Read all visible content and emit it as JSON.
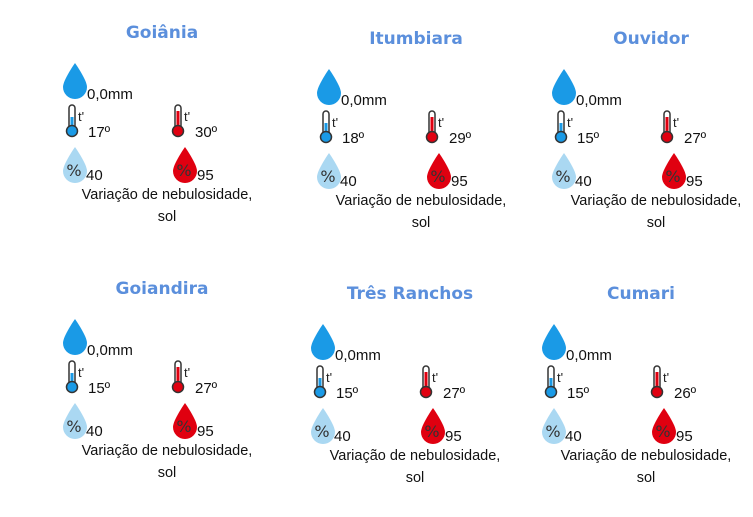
{
  "colors": {
    "title": "#5b8fdc",
    "rain": "#1a9ae6",
    "cold": "#1a9ae6",
    "hot": "#e00010",
    "humidity_low": "#aad8f2",
    "humidity_high": "#e00010"
  },
  "cities": [
    {
      "name": "Goiânia",
      "rain": "0,0mm",
      "tmin": "17º",
      "tmax": "30º",
      "hmin": "40",
      "hmax": "95",
      "desc1": "Variação de nebulosidade,",
      "desc2": "sol"
    },
    {
      "name": "Itumbiara",
      "rain": "0,0mm",
      "tmin": "18º",
      "tmax": "29º",
      "hmin": "40",
      "hmax": "95",
      "desc1": "Variação de nebulosidade,",
      "desc2": "sol"
    },
    {
      "name": "Ouvidor",
      "rain": "0,0mm",
      "tmin": "15º",
      "tmax": "27º",
      "hmin": "40",
      "hmax": "95",
      "desc1": "Variação de nebulosidade,",
      "desc2": "sol"
    },
    {
      "name": "Goiandira",
      "rain": "0,0mm",
      "tmin": "15º",
      "tmax": "27º",
      "hmin": "40",
      "hmax": "95",
      "desc1": "Variação de nebulosidade,",
      "desc2": "sol"
    },
    {
      "name": "Três Ranchos",
      "rain": "0,0mm",
      "tmin": "15º",
      "tmax": "27º",
      "hmin": "40",
      "hmax": "95",
      "desc1": "Variação de nebulosidade,",
      "desc2": "sol"
    },
    {
      "name": "Cumari",
      "rain": "0,0mm",
      "tmin": "15º",
      "tmax": "26º",
      "hmin": "40",
      "hmax": "95",
      "desc1": "Variação de nebulosidade,",
      "desc2": "sol"
    }
  ],
  "labels": {
    "temp_symbol": "t'",
    "percent": "%"
  }
}
